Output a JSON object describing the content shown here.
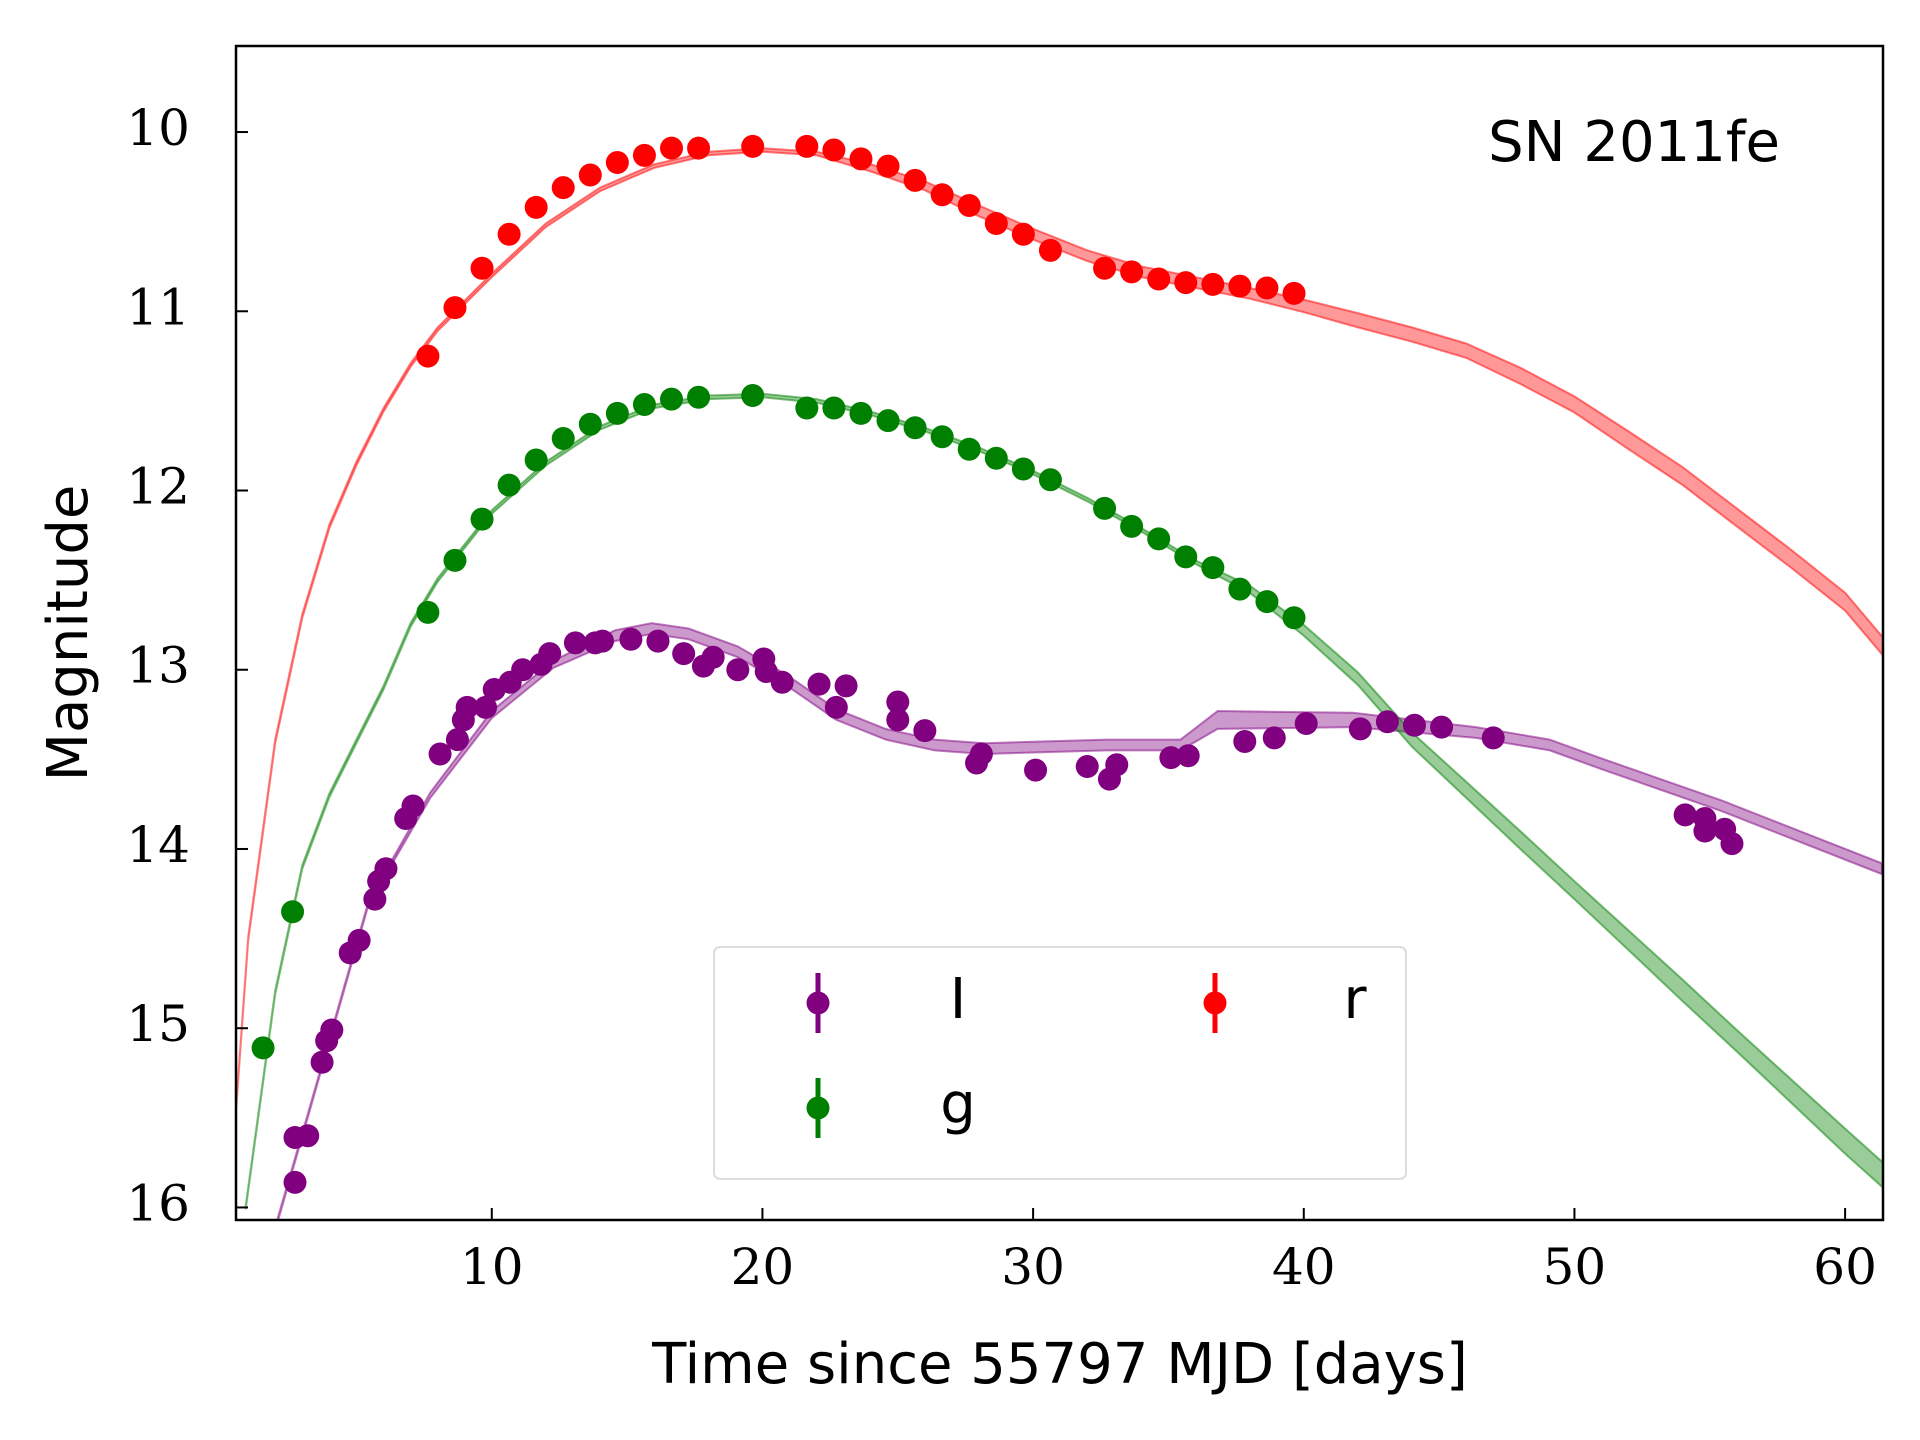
{
  "chart_data": {
    "type": "scatter",
    "annotation": "SN 2011fe",
    "xlabel": "Time since 55797 MJD [days]",
    "ylabel": "Magnitude",
    "xlim": [
      0.55,
      61.4
    ],
    "ylim": [
      16.07,
      9.52
    ],
    "invert_y": true,
    "xticks": [
      10,
      20,
      30,
      40,
      50,
      60
    ],
    "yticks": [
      10,
      11,
      12,
      13,
      14,
      15,
      16
    ],
    "legend": "lower center",
    "series": [
      {
        "name": "I",
        "color": "#800080",
        "x": [
          2.73,
          2.73,
          3.2,
          3.73,
          3.9,
          4.09,
          4.77,
          5.1,
          5.68,
          5.82,
          6.09,
          6.82,
          7.09,
          8.09,
          8.73,
          8.95,
          9.09,
          9.77,
          10.09,
          10.68,
          11.14,
          11.82,
          12.14,
          13.09,
          13.82,
          14.09,
          15.14,
          16.14,
          17.09,
          17.82,
          18.18,
          19.09,
          20.05,
          20.14,
          20.73,
          22.09,
          22.73,
          23.09,
          25.0,
          25.0,
          26.0,
          27.91,
          28.09,
          30.09,
          32.0,
          32.82,
          33.09,
          35.09,
          35.73,
          37.82,
          38.91,
          40.09,
          42.09,
          43.09,
          44.09,
          45.09,
          47.0,
          54.09,
          54.82,
          54.82,
          55.55,
          55.82
        ],
        "values": [
          15.86,
          15.61,
          15.6,
          15.19,
          15.07,
          15.01,
          14.58,
          14.51,
          14.28,
          14.18,
          14.11,
          13.83,
          13.76,
          13.47,
          13.39,
          13.28,
          13.21,
          13.21,
          13.11,
          13.07,
          13.0,
          12.97,
          12.91,
          12.85,
          12.85,
          12.84,
          12.83,
          12.84,
          12.91,
          12.98,
          12.93,
          13.0,
          12.94,
          13.01,
          13.07,
          13.08,
          13.21,
          13.09,
          13.18,
          13.28,
          13.34,
          13.52,
          13.47,
          13.56,
          13.54,
          13.61,
          13.53,
          13.49,
          13.48,
          13.4,
          13.38,
          13.3,
          13.33,
          13.29,
          13.31,
          13.32,
          13.38,
          13.81,
          13.83,
          13.9,
          13.89,
          13.97
        ]
      },
      {
        "name": "g",
        "color": "#008000",
        "x": [
          1.55,
          2.64,
          7.64,
          8.64,
          9.64,
          10.64,
          11.64,
          12.64,
          13.64,
          14.64,
          15.64,
          16.64,
          17.64,
          19.64,
          21.64,
          22.64,
          23.64,
          24.64,
          25.64,
          26.64,
          27.64,
          28.64,
          29.64,
          30.64,
          32.64,
          33.64,
          34.64,
          35.64,
          36.64,
          37.64,
          38.64,
          39.64
        ],
        "values": [
          15.11,
          14.35,
          12.68,
          12.39,
          12.16,
          11.97,
          11.83,
          11.71,
          11.63,
          11.57,
          11.52,
          11.49,
          11.48,
          11.47,
          11.54,
          11.54,
          11.57,
          11.61,
          11.65,
          11.7,
          11.77,
          11.82,
          11.88,
          11.94,
          12.1,
          12.2,
          12.27,
          12.37,
          12.43,
          12.55,
          12.62,
          12.71
        ]
      },
      {
        "name": "r",
        "color": "#ff0000",
        "x": [
          7.64,
          8.64,
          9.64,
          10.64,
          11.64,
          12.64,
          13.64,
          14.64,
          15.64,
          16.64,
          17.64,
          19.64,
          21.64,
          22.64,
          23.64,
          24.64,
          25.64,
          26.64,
          27.64,
          28.64,
          29.64,
          30.64,
          32.64,
          33.64,
          34.64,
          35.64,
          36.64,
          37.64,
          38.64,
          39.64
        ],
        "values": [
          11.25,
          10.98,
          10.76,
          10.57,
          10.42,
          10.31,
          10.24,
          10.17,
          10.13,
          10.09,
          10.09,
          10.08,
          10.08,
          10.1,
          10.15,
          10.19,
          10.27,
          10.35,
          10.41,
          10.51,
          10.57,
          10.66,
          10.76,
          10.78,
          10.82,
          10.84,
          10.85,
          10.86,
          10.87,
          10.9
        ]
      }
    ],
    "bands": [
      {
        "color": "#800080",
        "x": [
          2.09,
          3.18,
          5.45,
          7.73,
          10,
          12.27,
          14.55,
          15.91,
          17.27,
          19.09,
          20.91,
          22.73,
          24.55,
          26.36,
          28.18,
          32.73,
          35.45,
          36.82,
          41.82,
          46.36,
          49.09,
          50.91,
          55.45,
          61.36
        ],
        "values": [
          16.07,
          15.5,
          14.3,
          13.7,
          13.25,
          12.97,
          12.81,
          12.77,
          12.8,
          12.9,
          13.06,
          13.25,
          13.36,
          13.42,
          13.44,
          13.42,
          13.42,
          13.28,
          13.28,
          13.35,
          13.42,
          13.52,
          13.76,
          14.11
        ],
        "spread": [
          0.01,
          0.01,
          0.01,
          0.015,
          0.02,
          0.02,
          0.03,
          0.03,
          0.03,
          0.03,
          0.03,
          0.03,
          0.03,
          0.03,
          0.03,
          0.03,
          0.03,
          0.05,
          0.04,
          0.03,
          0.03,
          0.03,
          0.03,
          0.03
        ]
      },
      {
        "color": "#008000",
        "x": [
          0.91,
          2,
          3,
          4,
          5,
          6,
          7,
          8,
          10,
          12,
          14,
          16,
          18,
          20,
          22,
          24,
          26,
          28,
          30,
          32,
          34,
          36,
          38,
          40,
          42,
          44,
          46,
          48,
          50,
          52,
          54,
          56,
          58,
          60,
          61.4
        ],
        "values": [
          16.0,
          14.8,
          14.1,
          13.7,
          13.4,
          13.1,
          12.75,
          12.5,
          12.12,
          11.85,
          11.65,
          11.53,
          11.48,
          11.47,
          11.5,
          11.57,
          11.66,
          11.77,
          11.9,
          12.05,
          12.22,
          12.4,
          12.55,
          12.78,
          13.05,
          13.39,
          13.67,
          13.95,
          14.23,
          14.51,
          14.79,
          15.07,
          15.35,
          15.63,
          15.82
        ],
        "spread": [
          0.01,
          0.01,
          0.01,
          0.01,
          0.01,
          0.01,
          0.01,
          0.01,
          0.01,
          0.01,
          0.01,
          0.01,
          0.01,
          0.01,
          0.01,
          0.01,
          0.01,
          0.01,
          0.01,
          0.01,
          0.01,
          0.01,
          0.02,
          0.03,
          0.035,
          0.04,
          0.045,
          0.05,
          0.05,
          0.055,
          0.06,
          0.06,
          0.065,
          0.07,
          0.07
        ]
      },
      {
        "color": "#ff0000",
        "x": [
          0.55,
          1,
          2,
          3,
          4,
          5,
          6,
          7,
          8,
          10,
          12,
          14,
          16,
          18,
          20,
          22,
          24,
          26,
          28,
          30,
          32,
          34,
          36,
          38,
          40,
          42,
          44,
          46,
          48,
          50,
          52,
          54,
          56,
          58,
          60,
          61.4
        ],
        "values": [
          15.45,
          14.5,
          13.4,
          12.7,
          12.2,
          11.85,
          11.55,
          11.3,
          11.1,
          10.8,
          10.52,
          10.32,
          10.19,
          10.12,
          10.1,
          10.12,
          10.2,
          10.3,
          10.44,
          10.57,
          10.69,
          10.78,
          10.84,
          10.9,
          10.97,
          11.05,
          11.13,
          11.22,
          11.36,
          11.52,
          11.72,
          11.92,
          12.15,
          12.38,
          12.62,
          12.87
        ],
        "spread": [
          0.01,
          0.01,
          0.01,
          0.01,
          0.01,
          0.01,
          0.01,
          0.01,
          0.01,
          0.01,
          0.01,
          0.01,
          0.01,
          0.01,
          0.01,
          0.01,
          0.02,
          0.025,
          0.03,
          0.03,
          0.03,
          0.03,
          0.03,
          0.03,
          0.035,
          0.04,
          0.04,
          0.04,
          0.045,
          0.045,
          0.05,
          0.05,
          0.05,
          0.05,
          0.05,
          0.05
        ]
      }
    ]
  }
}
